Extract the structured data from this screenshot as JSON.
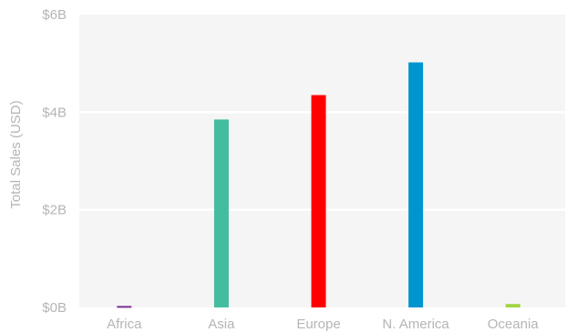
{
  "chart_data": {
    "type": "bar",
    "title": "",
    "xlabel": "",
    "ylabel": "Total Sales (USD)",
    "ylim": [
      0,
      6
    ],
    "y_unit": "billions USD",
    "yticks": [
      {
        "value": 0,
        "label": "$0B"
      },
      {
        "value": 2,
        "label": "$2B"
      },
      {
        "value": 4,
        "label": "$4B"
      },
      {
        "value": 6,
        "label": "$6B"
      }
    ],
    "categories": [
      "Africa",
      "Asia",
      "Europe",
      "N. America",
      "Oceania"
    ],
    "values": [
      0.03,
      3.85,
      4.35,
      5.02,
      0.07
    ],
    "colors": [
      "#7b2f8f",
      "#44bc9f",
      "#ff0000",
      "#0095cf",
      "#9fd53f"
    ],
    "grid": true,
    "background": "#f5f5f5"
  }
}
